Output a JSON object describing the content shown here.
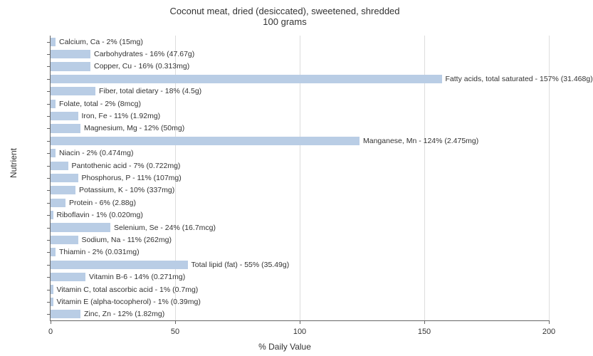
{
  "title_line1": "Coconut meat, dried (desiccated), sweetened, shredded",
  "title_line2": "100 grams",
  "y_axis_label": "Nutrient",
  "x_axis_label": "% Daily Value",
  "x_ticks": [
    0,
    50,
    100,
    150,
    200
  ],
  "xlim": [
    0,
    200
  ],
  "bar_color": "#b9cde5",
  "grid_color": "#dddddd",
  "axis_color": "#666666",
  "background_color": "#ffffff",
  "title_fontsize": 13,
  "axis_label_fontsize": 12,
  "tick_fontsize": 11,
  "bar_label_fontsize": 10.5,
  "nutrients": [
    {
      "label": "Calcium, Ca - 2% (15mg)",
      "value": 2
    },
    {
      "label": "Carbohydrates - 16% (47.67g)",
      "value": 16
    },
    {
      "label": "Copper, Cu - 16% (0.313mg)",
      "value": 16
    },
    {
      "label": "Fatty acids, total saturated - 157% (31.468g)",
      "value": 157
    },
    {
      "label": "Fiber, total dietary - 18% (4.5g)",
      "value": 18
    },
    {
      "label": "Folate, total - 2% (8mcg)",
      "value": 2
    },
    {
      "label": "Iron, Fe - 11% (1.92mg)",
      "value": 11
    },
    {
      "label": "Magnesium, Mg - 12% (50mg)",
      "value": 12
    },
    {
      "label": "Manganese, Mn - 124% (2.475mg)",
      "value": 124
    },
    {
      "label": "Niacin - 2% (0.474mg)",
      "value": 2
    },
    {
      "label": "Pantothenic acid - 7% (0.722mg)",
      "value": 7
    },
    {
      "label": "Phosphorus, P - 11% (107mg)",
      "value": 11
    },
    {
      "label": "Potassium, K - 10% (337mg)",
      "value": 10
    },
    {
      "label": "Protein - 6% (2.88g)",
      "value": 6
    },
    {
      "label": "Riboflavin - 1% (0.020mg)",
      "value": 1
    },
    {
      "label": "Selenium, Se - 24% (16.7mcg)",
      "value": 24
    },
    {
      "label": "Sodium, Na - 11% (262mg)",
      "value": 11
    },
    {
      "label": "Thiamin - 2% (0.031mg)",
      "value": 2
    },
    {
      "label": "Total lipid (fat) - 55% (35.49g)",
      "value": 55
    },
    {
      "label": "Vitamin B-6 - 14% (0.271mg)",
      "value": 14
    },
    {
      "label": "Vitamin C, total ascorbic acid - 1% (0.7mg)",
      "value": 1
    },
    {
      "label": "Vitamin E (alpha-tocopherol) - 1% (0.39mg)",
      "value": 1
    },
    {
      "label": "Zinc, Zn - 12% (1.82mg)",
      "value": 12
    }
  ]
}
